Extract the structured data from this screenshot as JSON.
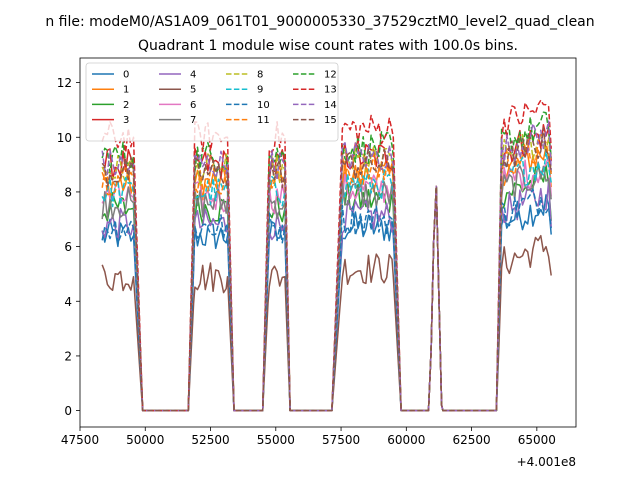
{
  "figure": {
    "suptitle": "n file: modeM0/AS1A09_061T01_9000005330_37529cztM0_level2_quad_clean",
    "title": "Quadrant 1 module wise count rates with 100.0s bins.",
    "offset_text": "+4.001e8"
  },
  "chart_data": {
    "type": "line",
    "title": "Quadrant 1 module wise count rates with 100.0s bins.",
    "xlabel": "",
    "ylabel": "",
    "x_offset": 400100000,
    "xlim": [
      47500,
      66500
    ],
    "ylim": [
      -0.6,
      12.9
    ],
    "xticks": [
      47500,
      50000,
      52500,
      55000,
      57500,
      60000,
      62500,
      65000
    ],
    "yticks": [
      0,
      2,
      4,
      6,
      8,
      10,
      12
    ],
    "grid": false,
    "legend_position": "top-left",
    "legend_columns": 4,
    "segments": [
      {
        "type": "on",
        "x_start": 48350,
        "x_end": 49550
      },
      {
        "type": "ramp",
        "x_start": 49550,
        "x_end": 49900
      },
      {
        "type": "off",
        "x_start": 49900,
        "x_end": 51650
      },
      {
        "type": "ramp",
        "x_start": 51650,
        "x_end": 51900
      },
      {
        "type": "on",
        "x_start": 51900,
        "x_end": 53150
      },
      {
        "type": "ramp",
        "x_start": 53150,
        "x_end": 53400
      },
      {
        "type": "off",
        "x_start": 53400,
        "x_end": 54500
      },
      {
        "type": "ramp",
        "x_start": 54500,
        "x_end": 54750
      },
      {
        "type": "on",
        "x_start": 54750,
        "x_end": 55350
      },
      {
        "type": "ramp",
        "x_start": 55350,
        "x_end": 55550
      },
      {
        "type": "off",
        "x_start": 55550,
        "x_end": 57150
      },
      {
        "type": "ramp",
        "x_start": 57150,
        "x_end": 57550
      },
      {
        "type": "on",
        "x_start": 57550,
        "x_end": 59500
      },
      {
        "type": "ramp",
        "x_start": 59500,
        "x_end": 59800
      },
      {
        "type": "off",
        "x_start": 59800,
        "x_end": 60850
      },
      {
        "type": "peak",
        "x_start": 60850,
        "x_end": 61400
      },
      {
        "type": "off",
        "x_start": 61400,
        "x_end": 63450
      },
      {
        "type": "ramp",
        "x_start": 63450,
        "x_end": 63650
      },
      {
        "type": "on",
        "x_start": 63650,
        "x_end": 65550
      }
    ],
    "series": [
      {
        "name": "0",
        "color": "#1f77b4",
        "dash": false,
        "level": 6.4
      },
      {
        "name": "1",
        "color": "#ff7f0e",
        "dash": false,
        "level": 8.3
      },
      {
        "name": "2",
        "color": "#2ca02c",
        "dash": false,
        "level": 7.4
      },
      {
        "name": "3",
        "color": "#d62728",
        "dash": false,
        "level": 9.0
      },
      {
        "name": "4",
        "color": "#9467bd",
        "dash": false,
        "level": 6.8
      },
      {
        "name": "5",
        "color": "#8c564b",
        "dash": false,
        "level": 4.9
      },
      {
        "name": "6",
        "color": "#e377c2",
        "dash": false,
        "level": 7.8
      },
      {
        "name": "7",
        "color": "#7f7f7f",
        "dash": false,
        "level": 7.6
      },
      {
        "name": "8",
        "color": "#bcbd22",
        "dash": true,
        "level": 8.8
      },
      {
        "name": "9",
        "color": "#17becf",
        "dash": true,
        "level": 8.0
      },
      {
        "name": "10",
        "color": "#1f77b4",
        "dash": true,
        "level": 6.7
      },
      {
        "name": "11",
        "color": "#ff7f0e",
        "dash": true,
        "level": 8.5
      },
      {
        "name": "12",
        "color": "#2ca02c",
        "dash": true,
        "level": 9.3
      },
      {
        "name": "13",
        "color": "#d62728",
        "dash": true,
        "level": 10.0
      },
      {
        "name": "14",
        "color": "#9467bd",
        "dash": true,
        "level": 9.0
      },
      {
        "name": "15",
        "color": "#8c564b",
        "dash": true,
        "level": 8.7
      }
    ]
  }
}
